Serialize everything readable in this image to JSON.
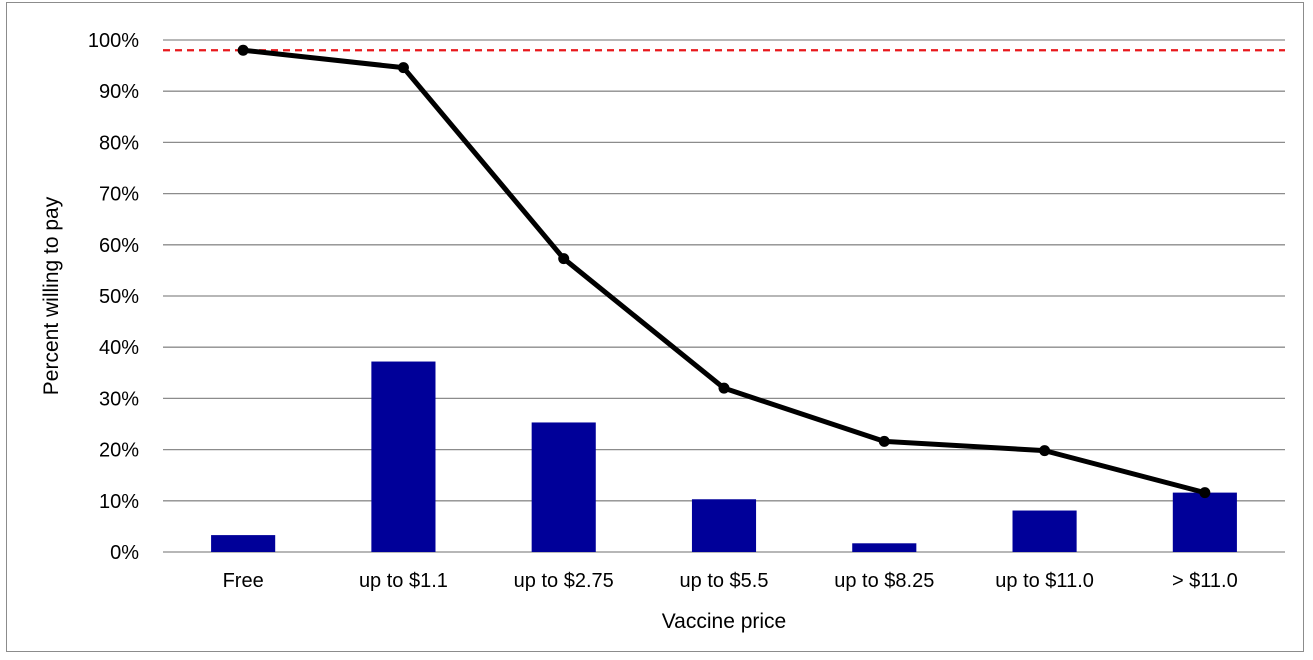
{
  "chart_data": {
    "type": "bar+line",
    "categories": [
      "Free",
      "up to $1.1",
      "up to $2.75",
      "up to $5.5",
      "up to $8.25",
      "up to $11.0",
      "> $11.0"
    ],
    "bar_values": [
      3.3,
      37.2,
      25.3,
      10.3,
      1.7,
      8.1,
      11.6
    ],
    "line_values": [
      98.0,
      94.6,
      57.3,
      32.0,
      21.6,
      19.8,
      11.6
    ],
    "reference_line": 98.0,
    "ylim": [
      0,
      100
    ],
    "yticks": [
      "0%",
      "10%",
      "20%",
      "30%",
      "40%",
      "50%",
      "60%",
      "70%",
      "80%",
      "90%",
      "100%"
    ],
    "xlabel": "Vaccine price",
    "ylabel": "Percent willing to pay",
    "grid": true,
    "colors": {
      "bar": "#000099",
      "line": "#000000",
      "reference": "#e8191c",
      "grid": "#8c8c8c"
    }
  }
}
